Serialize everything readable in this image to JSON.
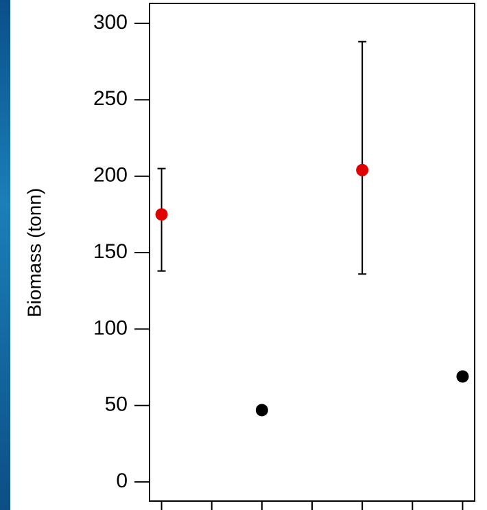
{
  "chart_data": {
    "type": "scatter",
    "y_label": "Biomass (tonn)",
    "xlim": [
      0.76,
      7.24
    ],
    "xticks": [
      1,
      2,
      3,
      4,
      5,
      6,
      7
    ],
    "ylim": [
      -12.5,
      313
    ],
    "yticks": [
      0,
      50,
      100,
      150,
      200,
      250,
      300
    ],
    "series": [
      {
        "color": "#e00000",
        "x": [
          1,
          5
        ],
        "values": [
          175,
          204
        ],
        "lower": [
          138,
          136
        ],
        "upper": [
          205,
          288
        ]
      },
      {
        "color": "#000000",
        "x": [
          3,
          7
        ],
        "values": [
          47,
          69
        ]
      }
    ]
  }
}
